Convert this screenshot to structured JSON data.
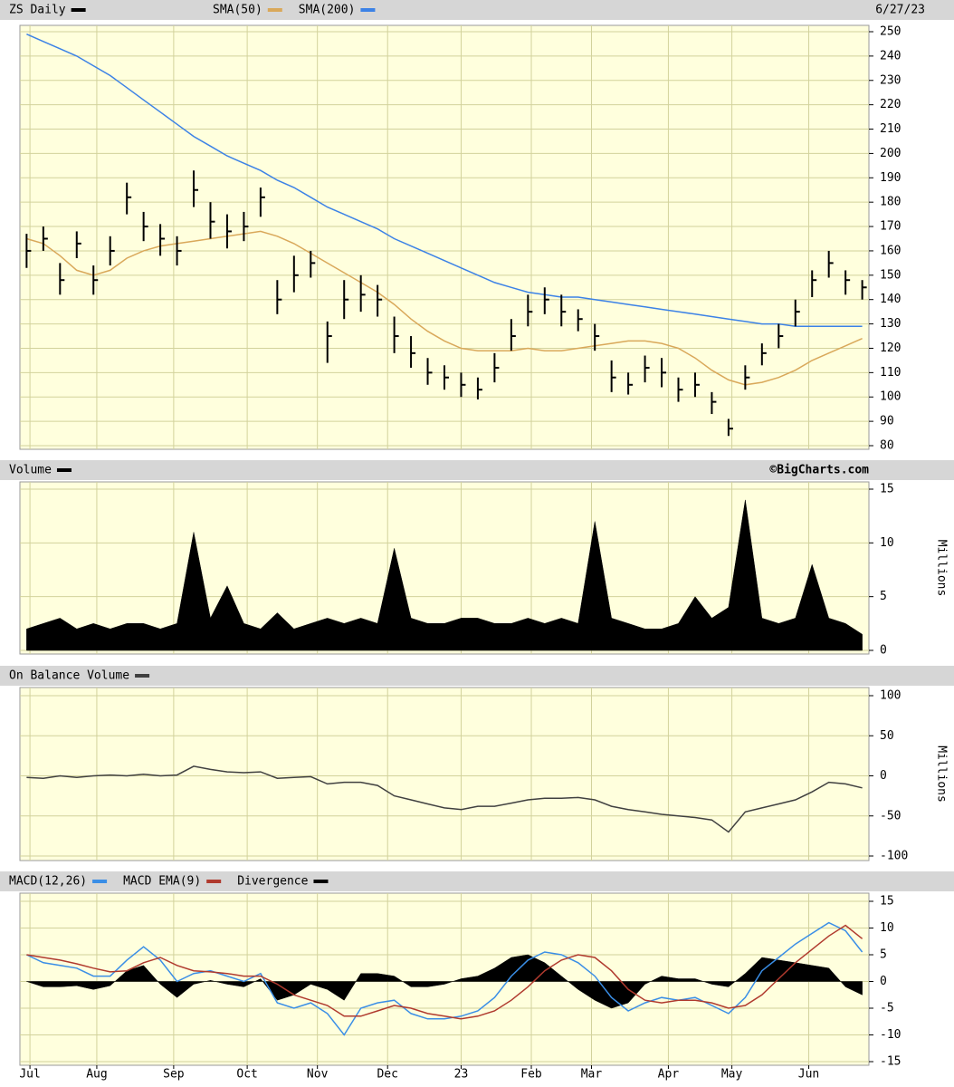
{
  "chart_data": [
    {
      "type": "ohlc",
      "title": "ZS Daily",
      "date": "6/27/23",
      "color": "#000000",
      "x": [
        0,
        5,
        10,
        15,
        20,
        25,
        30,
        35,
        40,
        45,
        50,
        55,
        60,
        65,
        70,
        75,
        80,
        85,
        90,
        95,
        100,
        105,
        110,
        115,
        120,
        125,
        130,
        135,
        140,
        145,
        150,
        155,
        160,
        165,
        170,
        175,
        180,
        185,
        190,
        195,
        200,
        205,
        210,
        215,
        220,
        225,
        230,
        235,
        240,
        245,
        250
      ],
      "high": [
        167,
        170,
        155,
        168,
        154,
        166,
        188,
        176,
        171,
        166,
        193,
        180,
        175,
        176,
        186,
        148,
        158,
        160,
        131,
        148,
        150,
        146,
        133,
        125,
        116,
        113,
        110,
        108,
        118,
        132,
        142,
        145,
        142,
        136,
        130,
        115,
        110,
        117,
        116,
        108,
        110,
        102,
        91,
        113,
        122,
        130,
        140,
        152,
        160,
        152,
        148
      ],
      "low": [
        153,
        160,
        142,
        157,
        142,
        154,
        175,
        164,
        158,
        154,
        178,
        165,
        161,
        164,
        174,
        134,
        143,
        149,
        114,
        132,
        135,
        133,
        118,
        112,
        105,
        103,
        100,
        99,
        106,
        119,
        129,
        134,
        129,
        127,
        119,
        102,
        101,
        106,
        104,
        98,
        100,
        93,
        84,
        103,
        113,
        120,
        129,
        141,
        149,
        142,
        140
      ],
      "close": [
        160,
        165,
        148,
        163,
        148,
        160,
        182,
        170,
        165,
        160,
        185,
        172,
        168,
        170,
        182,
        140,
        150,
        155,
        125,
        140,
        142,
        140,
        125,
        118,
        110,
        108,
        105,
        103,
        112,
        125,
        135,
        140,
        135,
        132,
        125,
        108,
        105,
        112,
        110,
        103,
        105,
        98,
        87,
        108,
        118,
        125,
        135,
        148,
        155,
        148,
        145
      ],
      "series": [
        {
          "name": "SMA(50)",
          "color": "#d9a85a",
          "values": [
            165,
            163,
            158,
            152,
            150,
            152,
            157,
            160,
            162,
            163,
            164,
            165,
            166,
            167,
            168,
            166,
            163,
            159,
            155,
            151,
            147,
            143,
            138,
            132,
            127,
            123,
            120,
            119,
            119,
            119,
            120,
            119,
            119,
            120,
            121,
            122,
            123,
            123,
            122,
            120,
            116,
            111,
            107,
            105,
            106,
            108,
            111,
            115,
            118,
            121,
            124
          ]
        },
        {
          "name": "SMA(200)",
          "color": "#3c82e6",
          "values": [
            249,
            246,
            243,
            240,
            236,
            232,
            227,
            222,
            217,
            212,
            207,
            203,
            199,
            196,
            193,
            189,
            186,
            182,
            178,
            175,
            172,
            169,
            165,
            162,
            159,
            156,
            153,
            150,
            147,
            145,
            143,
            142,
            141,
            141,
            140,
            139,
            138,
            137,
            136,
            135,
            134,
            133,
            132,
            131,
            130,
            130,
            129,
            129,
            129,
            129,
            129
          ]
        }
      ],
      "xlim": [
        -2,
        252
      ],
      "ylim": [
        80,
        250
      ],
      "yticks": [
        80,
        90,
        100,
        110,
        120,
        130,
        140,
        150,
        160,
        170,
        180,
        190,
        200,
        210,
        220,
        230,
        240,
        250
      ],
      "grid": true
    },
    {
      "type": "area",
      "title": "Volume",
      "credit": "©BigCharts.com",
      "y_label": "Millions",
      "color": "#000000",
      "x": [
        0,
        5,
        10,
        15,
        20,
        25,
        30,
        35,
        40,
        45,
        50,
        55,
        60,
        65,
        70,
        75,
        80,
        85,
        90,
        95,
        100,
        105,
        110,
        115,
        120,
        125,
        130,
        135,
        140,
        145,
        150,
        155,
        160,
        165,
        170,
        175,
        180,
        185,
        190,
        195,
        200,
        205,
        210,
        215,
        220,
        225,
        230,
        235,
        240,
        245,
        250
      ],
      "values": [
        2,
        2.5,
        3,
        2,
        2.5,
        2,
        2.5,
        2.5,
        2,
        2.5,
        11,
        3,
        6,
        2.5,
        2,
        3.5,
        2,
        2.5,
        3,
        2.5,
        3,
        2.5,
        9.5,
        3,
        2.5,
        2.5,
        3,
        3,
        2.5,
        2.5,
        3,
        2.5,
        3,
        2.5,
        12,
        3,
        2.5,
        2,
        2,
        2.5,
        5,
        3,
        4,
        14,
        3,
        2.5,
        3,
        8,
        3,
        2.5,
        1.5
      ],
      "xlim": [
        -2,
        252
      ],
      "ylim": [
        0,
        15
      ],
      "yticks": [
        0,
        5,
        10,
        15
      ],
      "grid": true
    },
    {
      "type": "line",
      "title": "On Balance Volume",
      "y_label": "Millions",
      "color": "#404040",
      "x": [
        0,
        5,
        10,
        15,
        20,
        25,
        30,
        35,
        40,
        45,
        50,
        55,
        60,
        65,
        70,
        75,
        80,
        85,
        90,
        95,
        100,
        105,
        110,
        115,
        120,
        125,
        130,
        135,
        140,
        145,
        150,
        155,
        160,
        165,
        170,
        175,
        180,
        185,
        190,
        195,
        200,
        205,
        210,
        215,
        220,
        225,
        230,
        235,
        240,
        245,
        250
      ],
      "values": [
        -2,
        -3,
        0,
        -2,
        0,
        1,
        0,
        2,
        0,
        1,
        12,
        8,
        5,
        4,
        5,
        -3,
        -2,
        -1,
        -10,
        -8,
        -8,
        -12,
        -25,
        -30,
        -35,
        -40,
        -42,
        -38,
        -38,
        -34,
        -30,
        -28,
        -28,
        -27,
        -30,
        -38,
        -42,
        -45,
        -48,
        -50,
        -52,
        -55,
        -70,
        -45,
        -40,
        -35,
        -30,
        -20,
        -8,
        -10,
        -15
      ],
      "xlim": [
        -2,
        252
      ],
      "ylim": [
        -100,
        100
      ],
      "yticks": [
        -100,
        -50,
        0,
        50,
        100
      ],
      "grid": true
    },
    {
      "type": "macd",
      "x": [
        0,
        5,
        10,
        15,
        20,
        25,
        30,
        35,
        40,
        45,
        50,
        55,
        60,
        65,
        70,
        75,
        80,
        85,
        90,
        95,
        100,
        105,
        110,
        115,
        120,
        125,
        130,
        135,
        140,
        145,
        150,
        155,
        160,
        165,
        170,
        175,
        180,
        185,
        190,
        195,
        200,
        205,
        210,
        215,
        220,
        225,
        230,
        235,
        240,
        245,
        250
      ],
      "series": [
        {
          "name": "MACD(12,26)",
          "color": "#3a8ee6",
          "values": [
            5,
            3.5,
            3,
            2.5,
            1,
            1,
            4,
            6.5,
            4,
            0,
            1.5,
            2,
            1,
            0,
            1.5,
            -4,
            -5,
            -4,
            -6,
            -10,
            -5,
            -4,
            -3.5,
            -6,
            -7,
            -7,
            -6.5,
            -5.5,
            -3,
            1,
            4,
            5.5,
            5,
            3.5,
            1,
            -3,
            -5.5,
            -4,
            -3,
            -3.5,
            -3,
            -4.5,
            -6,
            -3,
            2,
            4.5,
            7,
            9,
            11,
            9.5,
            5.5
          ]
        },
        {
          "name": "MACD EMA(9)",
          "color": "#b03a2e",
          "values": [
            5,
            4.5,
            4,
            3.3,
            2.5,
            1.8,
            2,
            3.5,
            4.5,
            3,
            2,
            1.8,
            1.5,
            1,
            1,
            -0.5,
            -2.5,
            -3.5,
            -4.5,
            -6.5,
            -6.5,
            -5.5,
            -4.5,
            -5,
            -6,
            -6.5,
            -7,
            -6.5,
            -5.5,
            -3.5,
            -1,
            2,
            4,
            5,
            4.5,
            2,
            -1.5,
            -3.5,
            -4,
            -3.5,
            -3.5,
            -4,
            -5,
            -4.5,
            -2.5,
            0.5,
            3.5,
            6,
            8.5,
            10.5,
            8
          ]
        },
        {
          "name": "Divergence",
          "color": "#000000",
          "type": "area",
          "values": [
            0,
            -1,
            -1,
            -0.8,
            -1.5,
            -0.8,
            2,
            3,
            -0.5,
            -3,
            -0.5,
            0.2,
            -0.5,
            -1,
            0.5,
            -3.5,
            -2.5,
            -0.5,
            -1.5,
            -3.5,
            1.5,
            1.5,
            1,
            -1,
            -1,
            -0.5,
            0.5,
            1,
            2.5,
            4.5,
            5,
            3.5,
            1,
            -1.5,
            -3.5,
            -5,
            -4,
            -0.5,
            1,
            0.5,
            0.5,
            -0.5,
            -1,
            1.5,
            4.5,
            4,
            3.5,
            3,
            2.5,
            -1,
            -2.5
          ]
        }
      ],
      "xlim": [
        -2,
        252
      ],
      "ylim": [
        -15,
        15
      ],
      "yticks": [
        -15,
        -10,
        -5,
        0,
        5,
        10,
        15
      ],
      "grid": true,
      "xticks": [
        {
          "value": 1,
          "label": "Jul"
        },
        {
          "value": 21,
          "label": "Aug"
        },
        {
          "value": 44,
          "label": "Sep"
        },
        {
          "value": 66,
          "label": "Oct"
        },
        {
          "value": 87,
          "label": "Nov"
        },
        {
          "value": 108,
          "label": "Dec"
        },
        {
          "value": 130,
          "label": "23"
        },
        {
          "value": 151,
          "label": "Feb"
        },
        {
          "value": 169,
          "label": "Mar"
        },
        {
          "value": 192,
          "label": "Apr"
        },
        {
          "value": 211,
          "label": "May"
        },
        {
          "value": 234,
          "label": "Jun"
        }
      ]
    }
  ]
}
